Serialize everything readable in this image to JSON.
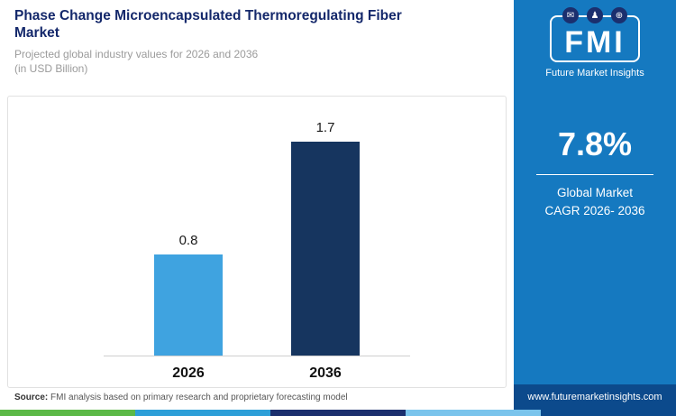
{
  "header": {
    "title": "Phase Change Microencapsulated Thermoregulating Fiber Market",
    "subtitle": " Projected global industry values for 2026 and 2036\n(in USD Billion)"
  },
  "chart_data": {
    "type": "bar",
    "categories": [
      "2026",
      "2036"
    ],
    "values": [
      0.8,
      1.7
    ],
    "value_labels": [
      "0.8",
      "1.7"
    ],
    "bar_colors": [
      "#3fa3e0",
      "#16355f"
    ],
    "title": "",
    "xlabel": "",
    "ylabel": "",
    "ylim": [
      0,
      2.0
    ],
    "grid": false,
    "legend": "none"
  },
  "sidebar": {
    "bg_color": "#1579c0",
    "logo": {
      "text": "FMI",
      "subtext": "Future Market Insights",
      "icons": [
        {
          "name": "mail-icon",
          "glyph": "✉"
        },
        {
          "name": "person-icon",
          "glyph": "♟"
        },
        {
          "name": "globe-icon",
          "glyph": "⊕"
        }
      ]
    },
    "cagr_value": "7.8%",
    "cagr_label": "Global Market\nCAGR 2026- 2036",
    "url_bar": {
      "text": "www.futuremarketinsights.com",
      "bg_color": "#0c4a8c"
    }
  },
  "footer": {
    "source_label": "Source:",
    "source_text": " FMI analysis based on primary research and proprietary forecasting model",
    "stripe_colors": [
      "#5cb947",
      "#2d9fd8",
      "#1b2f6e",
      "#7ac4ec",
      "#0c4a8c"
    ]
  }
}
